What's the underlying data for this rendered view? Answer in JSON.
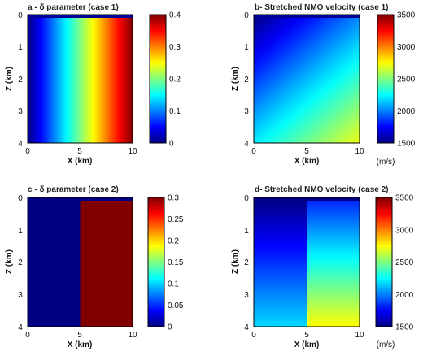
{
  "chart_data": [
    {
      "type": "heatmap",
      "title": "a - δ parameter (case 1)",
      "xlabel": "X (km)",
      "ylabel": "Z (km)",
      "xlim": [
        0,
        10
      ],
      "ylim": [
        4,
        0
      ],
      "x_ticks": [
        "0",
        "5",
        "10"
      ],
      "y_ticks": [
        "0",
        "1",
        "2",
        "3",
        "4"
      ],
      "colorbar": {
        "min": 0,
        "max": 0.4,
        "ticks": [
          "0",
          "0.1",
          "0.2",
          "0.3",
          "0.4"
        ],
        "unit": ""
      },
      "field": {
        "kind": "linear",
        "axis": "x",
        "description": "δ increases linearly with X",
        "at_x0": 0,
        "at_x10": 0.4
      }
    },
    {
      "type": "heatmap",
      "title": "b- Stretched NMO velocity (case 1)",
      "xlabel": "X (km)",
      "ylabel": "Z (km)",
      "xlim": [
        0,
        10
      ],
      "ylim": [
        4,
        0
      ],
      "x_ticks": [
        "0",
        "5",
        "10"
      ],
      "y_ticks": [
        "0",
        "1",
        "2",
        "3",
        "4"
      ],
      "colorbar": {
        "min": 1500,
        "max": 3500,
        "ticks": [
          "1500",
          "2000",
          "2500",
          "3000",
          "3500"
        ],
        "unit": "(m/s)"
      },
      "field": {
        "kind": "linear2d",
        "v_origin": 1500,
        "gradient_x": 50,
        "gradient_z": 180
      }
    },
    {
      "type": "heatmap",
      "title": "c - δ parameter (case 2)",
      "xlabel": "X (km)",
      "ylabel": "Z (km)",
      "xlim": [
        0,
        10
      ],
      "ylim": [
        4,
        0
      ],
      "x_ticks": [
        "0",
        "5",
        "10"
      ],
      "y_ticks": [
        "0",
        "1",
        "2",
        "3",
        "4"
      ],
      "colorbar": {
        "min": 0,
        "max": 0.3,
        "ticks": [
          "0",
          "0.05",
          "0.1",
          "0.15",
          "0.2",
          "0.25",
          "0.3"
        ],
        "unit": ""
      },
      "field": {
        "kind": "step",
        "boundary_x": 5,
        "left": 0,
        "right": 0.3,
        "top_layer_value": 0,
        "top_layer_z": 0.1
      }
    },
    {
      "type": "heatmap",
      "title": "d- Stretched NMO velocity (case 2)",
      "xlabel": "X (km)",
      "ylabel": "Z (km)",
      "xlim": [
        0,
        10
      ],
      "ylim": [
        4,
        0
      ],
      "x_ticks": [
        "0",
        "5",
        "10"
      ],
      "y_ticks": [
        "0",
        "1",
        "2",
        "3",
        "4"
      ],
      "colorbar": {
        "min": 1500,
        "max": 3500,
        "ticks": [
          "1500",
          "2000",
          "2500",
          "3000",
          "3500"
        ],
        "unit": "(m/s)"
      },
      "field": {
        "kind": "step_gradient",
        "boundary_x": 5,
        "left_v0": 1500,
        "left_grad_z": 170,
        "right_v0": 1800,
        "right_grad_z": 240,
        "top_layer_value": 1500,
        "top_layer_z": 0.1
      }
    }
  ]
}
